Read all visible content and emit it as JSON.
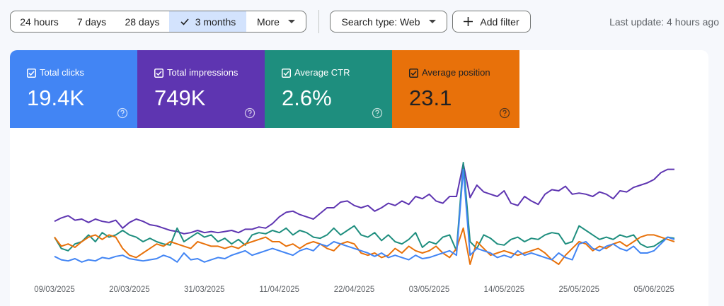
{
  "filters": {
    "date_ranges": [
      "24 hours",
      "7 days",
      "28 days",
      "3 months"
    ],
    "selected": 3,
    "more": "More",
    "search_type": "Search type: Web",
    "add_filter": "Add filter"
  },
  "last_update": "Last update: 4 hours ago",
  "metrics": [
    {
      "label": "Total clicks",
      "value": "19.4K",
      "color": "#4285f4"
    },
    {
      "label": "Total impressions",
      "value": "749K",
      "color": "#5e35b1"
    },
    {
      "label": "Average CTR",
      "value": "2.6%",
      "color": "#1e8e7e"
    },
    {
      "label": "Average position",
      "value": "23.1",
      "color": "#e8710a"
    }
  ],
  "chart_data": {
    "type": "line",
    "categories": [
      "09/03/2025",
      null,
      null,
      null,
      null,
      null,
      null,
      null,
      null,
      null,
      null,
      "20/03/2025",
      null,
      null,
      null,
      null,
      null,
      null,
      null,
      null,
      null,
      null,
      "31/03/2025",
      null,
      null,
      null,
      null,
      null,
      null,
      null,
      null,
      null,
      null,
      "11/04/2025",
      null,
      null,
      null,
      null,
      null,
      null,
      null,
      null,
      null,
      null,
      "22/04/2025",
      null,
      null,
      null,
      null,
      null,
      null,
      null,
      null,
      null,
      null,
      "03/05/2025",
      null,
      null,
      null,
      null,
      null,
      null,
      null,
      null,
      null,
      null,
      "14/05/2025",
      null,
      null,
      null,
      null,
      null,
      null,
      null,
      null,
      null,
      null,
      "25/05/2025",
      null,
      null,
      null,
      null,
      null,
      null,
      null,
      null,
      null,
      null,
      "05/06/2025",
      null,
      null,
      null
    ],
    "series": [
      {
        "color": "#5e35b1",
        "values": [
          48,
          51,
          53,
          49,
          50,
          47,
          50,
          48,
          47,
          49,
          42,
          47,
          50,
          48,
          45,
          44,
          42,
          40,
          39,
          37,
          38,
          40,
          38,
          39,
          38,
          39,
          40,
          38,
          41,
          41,
          43,
          42,
          46,
          52,
          56,
          57,
          54,
          52,
          50,
          55,
          60,
          60,
          65,
          66,
          62,
          60,
          62,
          57,
          60,
          64,
          62,
          66,
          63,
          70,
          68,
          72,
          66,
          64,
          70,
          70,
          99,
          69,
          80,
          74,
          72,
          70,
          75,
          64,
          62,
          70,
          66,
          63,
          72,
          76,
          75,
          79,
          72,
          73,
          72,
          70,
          74,
          72,
          68,
          75,
          74,
          78,
          80,
          82,
          85,
          91,
          94,
          94
        ]
      },
      {
        "color": "#1e8e7e",
        "values": [
          34,
          24,
          22,
          28,
          30,
          36,
          30,
          38,
          34,
          36,
          40,
          36,
          34,
          30,
          33,
          30,
          28,
          27,
          42,
          30,
          34,
          38,
          34,
          36,
          30,
          33,
          28,
          32,
          27,
          36,
          38,
          37,
          40,
          38,
          42,
          36,
          40,
          38,
          34,
          33,
          36,
          42,
          36,
          40,
          44,
          36,
          34,
          38,
          31,
          36,
          30,
          28,
          32,
          38,
          25,
          30,
          28,
          34,
          36,
          22,
          100,
          30,
          24,
          36,
          33,
          28,
          27,
          32,
          34,
          30,
          33,
          32,
          36,
          38,
          37,
          28,
          30,
          44,
          40,
          36,
          32,
          34,
          32,
          36,
          34,
          36,
          28,
          25,
          26,
          30,
          34,
          33
        ]
      },
      {
        "color": "#e8710a",
        "values": [
          34,
          26,
          28,
          25,
          30,
          34,
          36,
          32,
          36,
          34,
          24,
          18,
          16,
          20,
          24,
          28,
          26,
          30,
          28,
          26,
          24,
          30,
          28,
          26,
          26,
          24,
          26,
          24,
          28,
          30,
          32,
          34,
          30,
          30,
          26,
          28,
          24,
          28,
          30,
          28,
          24,
          22,
          28,
          30,
          28,
          20,
          18,
          20,
          16,
          18,
          24,
          20,
          26,
          22,
          20,
          22,
          26,
          20,
          16,
          24,
          42,
          10,
          30,
          24,
          18,
          20,
          22,
          20,
          18,
          20,
          22,
          24,
          20,
          14,
          10,
          18,
          24,
          30,
          28,
          22,
          26,
          24,
          28,
          30,
          26,
          30,
          34,
          36,
          36,
          34,
          32,
          30
        ]
      },
      {
        "color": "#4285f4",
        "values": [
          17,
          14,
          13,
          15,
          12,
          14,
          13,
          16,
          15,
          17,
          18,
          15,
          14,
          13,
          14,
          15,
          18,
          16,
          12,
          20,
          14,
          15,
          12,
          14,
          16,
          15,
          18,
          20,
          22,
          18,
          20,
          22,
          24,
          22,
          20,
          18,
          22,
          24,
          22,
          28,
          26,
          30,
          28,
          26,
          24,
          22,
          20,
          17,
          20,
          16,
          18,
          16,
          14,
          18,
          15,
          16,
          18,
          20,
          22,
          18,
          94,
          18,
          24,
          22,
          20,
          16,
          18,
          16,
          22,
          18,
          20,
          18,
          16,
          14,
          20,
          16,
          14,
          28,
          30,
          24,
          22,
          26,
          28,
          24,
          22,
          26,
          20,
          20,
          22,
          28,
          34,
          32
        ]
      }
    ],
    "ylim": [
      0,
      100
    ]
  }
}
